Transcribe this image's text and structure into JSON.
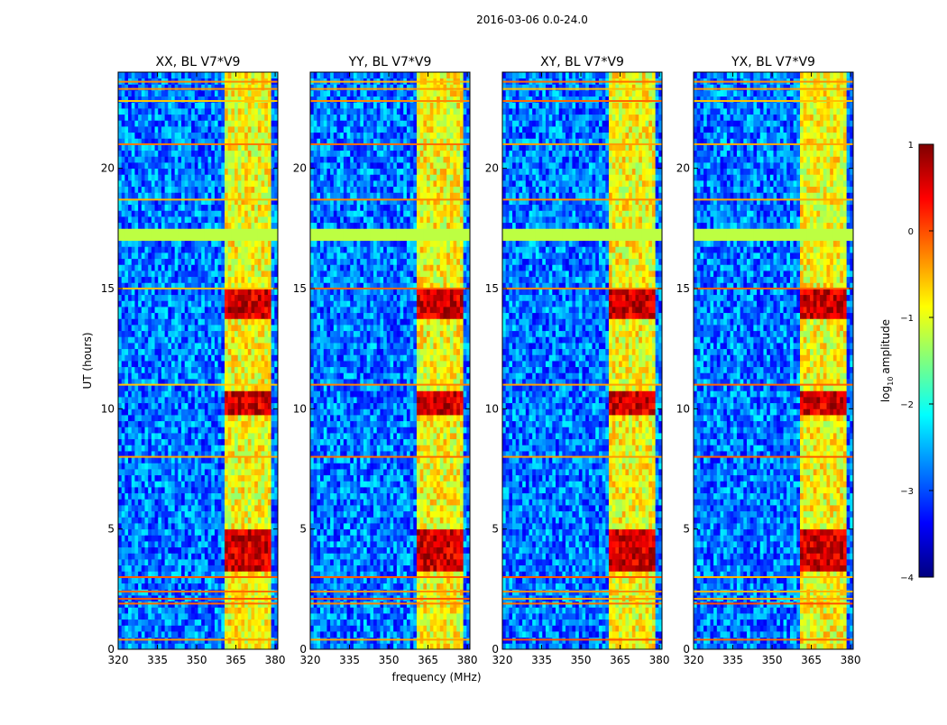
{
  "chart_data": {
    "type": "heatmap",
    "title": "2016-03-06 0.0-24.0",
    "xlabel": "frequency (MHz)",
    "ylabel": "UT (hours)",
    "xlim": [
      320,
      381
    ],
    "ylim": [
      0,
      24
    ],
    "xticks": [
      320,
      335,
      350,
      365,
      380
    ],
    "xtick_labels": [
      "320",
      "335",
      "350",
      "365",
      "380"
    ],
    "yticks": [
      0,
      5,
      10,
      15,
      20
    ],
    "ytick_labels": [
      "0",
      "5",
      "10",
      "15",
      "20"
    ],
    "panels": [
      {
        "name": "XX",
        "title": "XX, BL V7*V9"
      },
      {
        "name": "YY",
        "title": "YY, BL V7*V9"
      },
      {
        "name": "XY",
        "title": "XY, BL V7*V9"
      },
      {
        "name": "YX",
        "title": "YX, BL V7*V9"
      }
    ],
    "colorbar": {
      "label": "log10 amplitude",
      "label_text": "amplitude",
      "label_prefix": "log",
      "label_sub": "10",
      "range": [
        -4,
        1
      ],
      "ticks": [
        1,
        0,
        -1,
        -2,
        -3,
        -4
      ],
      "tick_labels": [
        "1",
        "0",
        "−1",
        "−2",
        "−3",
        "−4"
      ],
      "colormap": "jet"
    },
    "features": {
      "band_start_mhz": 361,
      "band_end_mhz": 379,
      "strong_rfi_hours": [
        [
          3.3,
          5.1
        ],
        [
          9.7,
          10.8
        ],
        [
          13.7,
          14.9
        ]
      ],
      "flagged_hours": [
        [
          17.0,
          17.6
        ]
      ],
      "flagged_value": -1.2,
      "background_value": -2.8,
      "band_value": -0.9,
      "strong_value": 0.6
    }
  }
}
